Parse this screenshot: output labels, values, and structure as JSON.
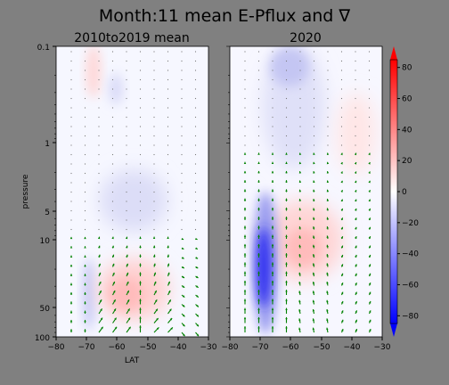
{
  "figure": {
    "title": "Month:11 mean E-Pflux and ∇",
    "background": "#808080"
  },
  "chart_data": [
    {
      "type": "heatmap",
      "subtitle": "2010to2019 mean",
      "xlabel": "LAT",
      "ylabel": "pressure",
      "xlim": [
        -80,
        -30
      ],
      "ylim": [
        100,
        0.1
      ],
      "yscale": "log",
      "xticks": [
        "−80",
        "−70",
        "−60",
        "−50",
        "−40",
        "−30"
      ],
      "yticks": [
        "0.1",
        "1",
        "5",
        "10",
        "50",
        "100"
      ],
      "contour_features": [
        {
          "lat": -58,
          "p": 40,
          "value": 12,
          "note": "positive maximum"
        },
        {
          "lat": -70,
          "p": 60,
          "value": -15,
          "note": "weak negative"
        },
        {
          "lat": -55,
          "p": 3,
          "value": -8,
          "note": "weak negative band"
        }
      ],
      "vectors": "green E-P flux arrows, mostly upward in lower stratosphere"
    },
    {
      "type": "heatmap",
      "subtitle": "2020",
      "xlabel": "",
      "ylabel": "",
      "xlim": [
        -80,
        -30
      ],
      "ylim": [
        100,
        0.1
      ],
      "yscale": "log",
      "xticks": [
        "−80",
        "−70",
        "−60",
        "−50",
        "−40",
        "−30"
      ],
      "yticks": [],
      "contour_features": [
        {
          "lat": -69,
          "p": 30,
          "value": -75,
          "note": "strong negative minimum"
        },
        {
          "lat": -57,
          "p": 12,
          "value": 15,
          "note": "positive maximum"
        },
        {
          "lat": -58,
          "p": 0.2,
          "value": -25,
          "note": "upper negative"
        }
      ],
      "vectors": "green E-P flux arrows, upward/poleward"
    }
  ],
  "colorbar": {
    "ticks": [
      "80",
      "60",
      "40",
      "20",
      "0",
      "−20",
      "−40",
      "−60",
      "−80"
    ],
    "range": [
      -85,
      85
    ],
    "colors": {
      "low": "#0000ff",
      "mid": "#ffffff",
      "high": "#ff0000"
    }
  },
  "arrow_color": "#008000"
}
